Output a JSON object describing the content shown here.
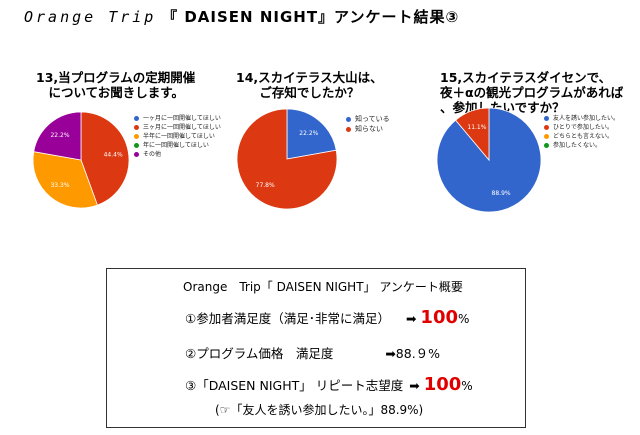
{
  "header": {
    "prefix": "Orange Trip",
    "main": "『 DAISEN NIGHT』アンケート結果③"
  },
  "colors": {
    "blue": "#3366cc",
    "red": "#dc3912",
    "orange": "#ff9900",
    "green": "#109618",
    "purple": "#990099"
  },
  "chart_data": [
    {
      "type": "pie",
      "title": "13,当プログラムの定期開催\n　についてお聞きします。",
      "categories": [
        "一ヶ月に一回開催してほしい",
        "三ヶ月に一回開催してほしい",
        "半年に一回開催してほしい",
        "年に一回開催してほしい",
        "その他"
      ],
      "values": [
        0,
        44.4,
        33.3,
        0,
        22.2
      ],
      "labels": [
        "",
        "44.4%",
        "33.3%",
        "",
        "22.2%"
      ],
      "colors": [
        "#3366cc",
        "#dc3912",
        "#ff9900",
        "#109618",
        "#990099"
      ],
      "legend": "right"
    },
    {
      "type": "pie",
      "title": "14,スカイテラス大山は、\nご存知でしたか？",
      "categories": [
        "知っている",
        "知らない"
      ],
      "values": [
        22.2,
        77.8
      ],
      "labels": [
        "22.2%",
        "77.8%"
      ],
      "colors": [
        "#3366cc",
        "#dc3912"
      ],
      "legend": "right"
    },
    {
      "type": "pie",
      "title": "15,スカイテラスダイセンで、\n夜＋αの観光プログラムがあれば\n、参加したいですか？",
      "categories": [
        "友人を誘い参加したい。",
        "ひとりで参加したい。",
        "どちらとも言えない。",
        "参加したくない。"
      ],
      "values": [
        88.9,
        11.1,
        0,
        0
      ],
      "labels": [
        "88.9%",
        "11.1%",
        "",
        ""
      ],
      "colors": [
        "#3366cc",
        "#dc3912",
        "#ff9900",
        "#109618"
      ],
      "legend": "right"
    }
  ],
  "summary": {
    "heading": "Orange　Trip「 DAISEN NIGHT」 アンケート概要",
    "line1_label": "①参加者満足度（満足･非常に満足）",
    "line1_arrow": "➡",
    "line1_value": "100",
    "line1_unit": "%",
    "line2_label": "②プログラム価格　満足度",
    "line2_value": "➡88.９%",
    "line3_label": "③「DAISEN NIGHT」 リピート志望度",
    "line3_arrow": "➡",
    "line3_value": "100",
    "line3_unit": "%",
    "note": "(☞「友人を誘い参加したい。」88.9%)"
  }
}
